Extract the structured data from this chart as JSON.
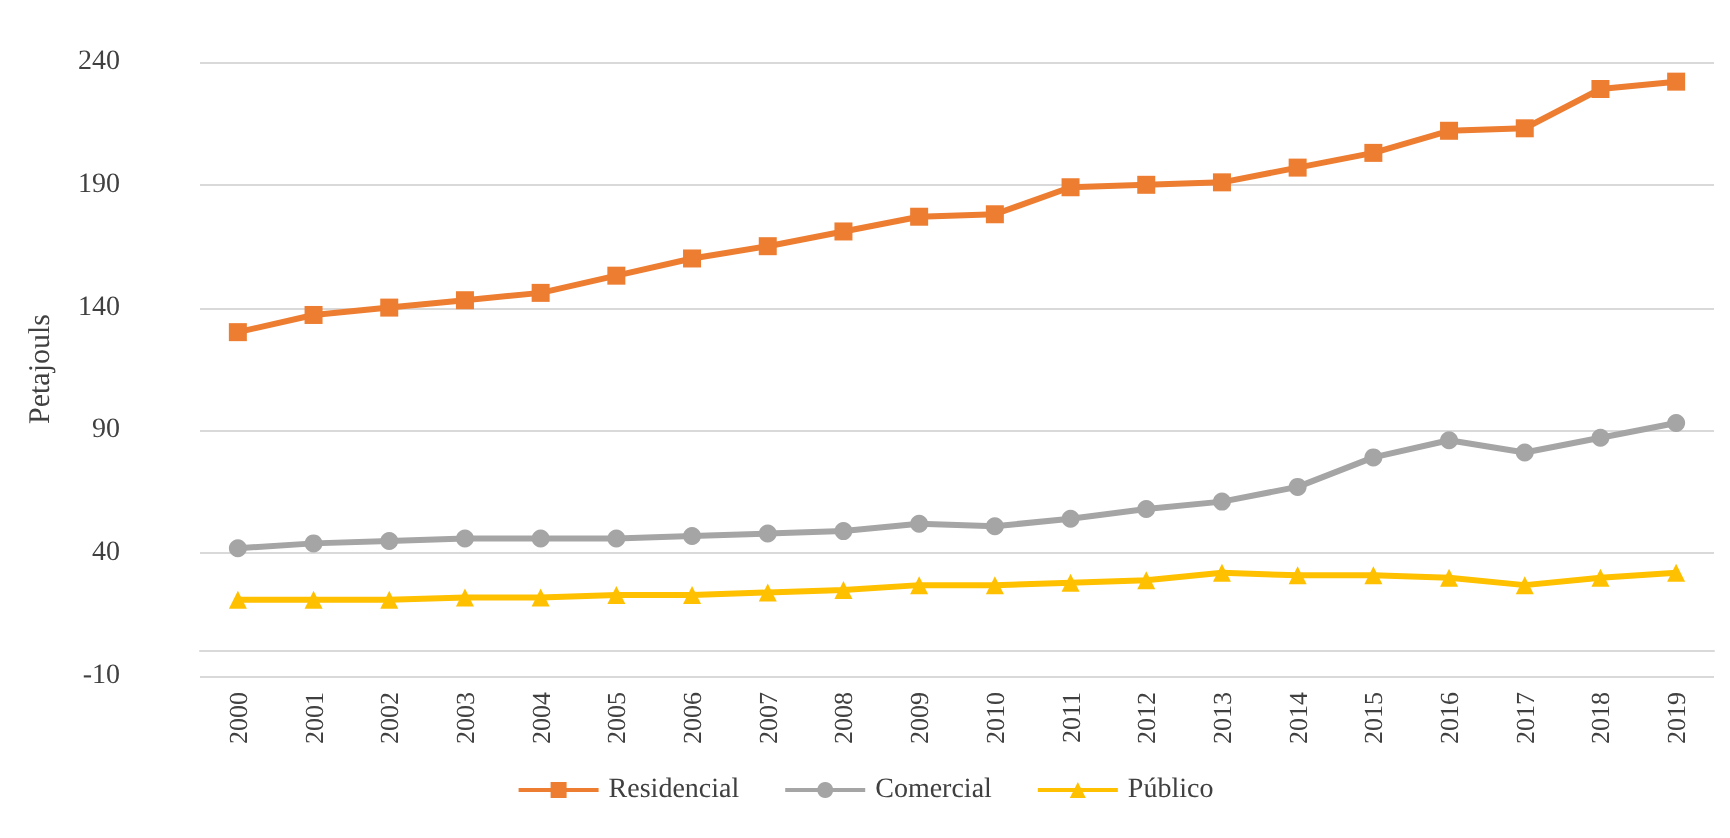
{
  "chart_data": {
    "type": "line",
    "ylabel": "Petajouls",
    "categories": [
      "2000",
      "2001",
      "2002",
      "2003",
      "2004",
      "2005",
      "2006",
      "2007",
      "2008",
      "2009",
      "2010",
      "2011",
      "2012",
      "2013",
      "2014",
      "2015",
      "2016",
      "2017",
      "2018",
      "2019"
    ],
    "series": [
      {
        "name": "Residencial",
        "color": "#ed7d31",
        "marker": "square",
        "values": [
          130,
          137,
          140,
          143,
          146,
          153,
          160,
          165,
          171,
          177,
          178,
          189,
          190,
          191,
          197,
          203,
          212,
          213,
          229,
          232
        ]
      },
      {
        "name": "Comercial",
        "color": "#a5a5a5",
        "marker": "circle",
        "values": [
          42,
          44,
          45,
          46,
          46,
          46,
          47,
          48,
          49,
          52,
          51,
          54,
          58,
          61,
          67,
          79,
          86,
          81,
          87,
          93
        ]
      },
      {
        "name": "Público",
        "color": "#ffc000",
        "marker": "triangle",
        "values": [
          21,
          21,
          21,
          22,
          22,
          23,
          23,
          24,
          25,
          27,
          27,
          28,
          29,
          32,
          31,
          31,
          30,
          27,
          30,
          32
        ]
      }
    ],
    "ylim": [
      -10,
      240
    ],
    "yticks": [
      -10,
      40,
      90,
      140,
      190,
      240
    ],
    "grid": "y",
    "legend": "bottom"
  }
}
